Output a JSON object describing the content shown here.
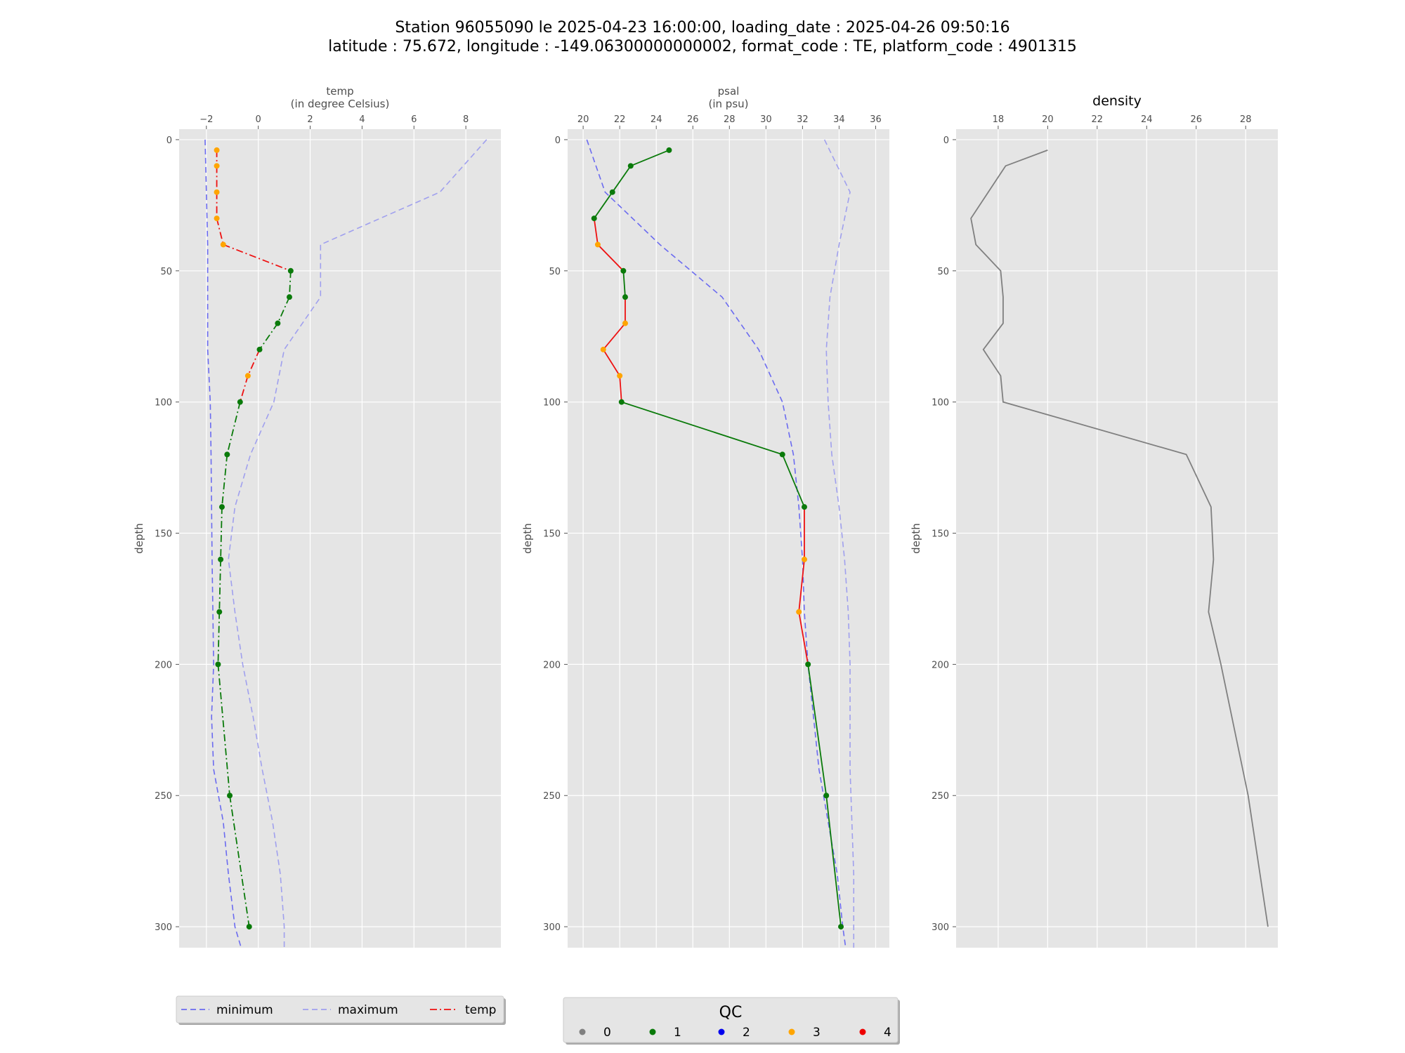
{
  "title_line1": "Station 96055090 le 2025-04-23 16:00:00, loading_date : 2025-04-26 09:50:16",
  "title_line2": "latitude : 75.672, longitude : -149.06300000000002, format_code : TE, platform_code : 4901315",
  "colors": {
    "panel_bg": "#e5e5e5",
    "grid": "#ffffff",
    "minimum": "#6b6bf0",
    "maximum": "#a0a0ee",
    "temp_line": "#ee1111",
    "psal_line": "#ee1111",
    "density_line": "#808080",
    "qc": {
      "0": "#808080",
      "1": "#0a7a0a",
      "2": "#0000ee",
      "3": "#ffa500",
      "4": "#ee0000"
    },
    "qc_line": {
      "1": "#0a7a0a",
      "3": "#ee1111",
      "4": "#ee1111"
    }
  },
  "chart_data": [
    {
      "type": "line",
      "id": "temp",
      "xlabel_line1": "temp",
      "xlabel_line2": "(in degree Celsius)",
      "ylabel": "depth",
      "title": "",
      "xlim": [
        -3.05,
        9.35
      ],
      "ylim": [
        308,
        -4
      ],
      "y_inverted": true,
      "xticks": [
        -2,
        0,
        2,
        4,
        6,
        8
      ],
      "xtick_labels": [
        "−2",
        "0",
        "2",
        "4",
        "6",
        "8"
      ],
      "yticks": [
        0,
        50,
        100,
        150,
        200,
        250,
        300
      ],
      "grid": true,
      "line_style": "dashdot",
      "minimum": {
        "depth": [
          0,
          20,
          40,
          60,
          80,
          100,
          120,
          140,
          160,
          180,
          200,
          220,
          240,
          260,
          280,
          300,
          310
        ],
        "value": [
          -2.05,
          -2.0,
          -1.95,
          -1.95,
          -1.95,
          -1.85,
          -1.82,
          -1.8,
          -1.78,
          -1.75,
          -1.72,
          -1.8,
          -1.72,
          -1.35,
          -1.15,
          -0.9,
          -0.6
        ]
      },
      "maximum": {
        "depth": [
          0,
          20,
          40,
          60,
          80,
          100,
          120,
          140,
          160,
          180,
          200,
          220,
          240,
          260,
          280,
          300,
          310
        ],
        "value": [
          8.8,
          7.0,
          2.4,
          2.4,
          1.0,
          0.6,
          -0.3,
          -0.9,
          -1.15,
          -0.9,
          -0.6,
          -0.2,
          0.15,
          0.55,
          0.85,
          1.0,
          1.0
        ]
      },
      "profile": {
        "depth": [
          4,
          10,
          20,
          30,
          40,
          50,
          60,
          70,
          80,
          90,
          100,
          120,
          140,
          160,
          180,
          200,
          250,
          300
        ],
        "value": [
          -1.6,
          -1.6,
          -1.6,
          -1.6,
          -1.35,
          1.25,
          1.2,
          0.75,
          0.05,
          -0.4,
          -0.7,
          -1.2,
          -1.4,
          -1.45,
          -1.5,
          -1.55,
          -1.1,
          -0.35
        ],
        "qc": [
          3,
          3,
          3,
          3,
          3,
          1,
          1,
          1,
          1,
          3,
          1,
          1,
          1,
          1,
          1,
          1,
          1,
          1
        ]
      }
    },
    {
      "type": "line",
      "id": "psal",
      "xlabel_line1": "psal",
      "xlabel_line2": "(in psu)",
      "ylabel": "depth",
      "title": "",
      "xlim": [
        19.15,
        36.75
      ],
      "ylim": [
        308,
        -4
      ],
      "y_inverted": true,
      "xticks": [
        20,
        22,
        24,
        26,
        28,
        30,
        32,
        34,
        36
      ],
      "xtick_labels": [
        "20",
        "22",
        "24",
        "26",
        "28",
        "30",
        "32",
        "34",
        "36"
      ],
      "yticks": [
        0,
        50,
        100,
        150,
        200,
        250,
        300
      ],
      "grid": true,
      "line_style": "solid",
      "minimum": {
        "depth": [
          0,
          20,
          40,
          60,
          80,
          100,
          120,
          140,
          160,
          180,
          200,
          220,
          240,
          260,
          280,
          300,
          310
        ],
        "value": [
          20.2,
          21.2,
          24.2,
          27.6,
          29.6,
          30.9,
          31.5,
          31.8,
          32.0,
          32.1,
          32.3,
          32.6,
          32.9,
          33.4,
          33.9,
          34.2,
          34.4
        ]
      },
      "maximum": {
        "depth": [
          0,
          20,
          40,
          60,
          80,
          100,
          120,
          140,
          160,
          180,
          200,
          220,
          240,
          260,
          280,
          300,
          310
        ],
        "value": [
          33.2,
          34.6,
          34.0,
          33.5,
          33.3,
          33.4,
          33.6,
          34.0,
          34.3,
          34.5,
          34.6,
          34.6,
          34.6,
          34.7,
          34.8,
          34.8,
          34.8
        ]
      },
      "profile": {
        "depth": [
          4,
          10,
          20,
          30,
          40,
          50,
          60,
          70,
          80,
          90,
          100,
          120,
          140,
          160,
          180,
          200,
          250,
          300
        ],
        "value": [
          24.7,
          22.6,
          21.6,
          20.6,
          20.8,
          22.2,
          22.3,
          22.3,
          21.1,
          22.0,
          22.1,
          30.9,
          32.1,
          32.1,
          31.8,
          32.3,
          33.3,
          34.1
        ],
        "qc": [
          1,
          1,
          1,
          1,
          3,
          1,
          1,
          3,
          3,
          3,
          1,
          1,
          1,
          3,
          3,
          1,
          1,
          1
        ]
      }
    },
    {
      "type": "line",
      "id": "density",
      "title": "density",
      "xlabel_line1": "",
      "xlabel_line2": "",
      "ylabel": "depth",
      "xlim": [
        16.3,
        29.3
      ],
      "ylim": [
        308,
        -4
      ],
      "y_inverted": true,
      "xticks": [
        18,
        20,
        22,
        24,
        26,
        28
      ],
      "xtick_labels": [
        "18",
        "20",
        "22",
        "24",
        "26",
        "28"
      ],
      "yticks": [
        0,
        50,
        100,
        150,
        200,
        250,
        300
      ],
      "grid": true,
      "line_style": "solid",
      "profile": {
        "depth": [
          4,
          10,
          30,
          40,
          50,
          60,
          70,
          80,
          90,
          100,
          120,
          140,
          160,
          180,
          200,
          250,
          300
        ],
        "value": [
          20.0,
          18.3,
          16.9,
          17.1,
          18.1,
          18.2,
          18.2,
          17.4,
          18.1,
          18.2,
          25.6,
          26.6,
          26.7,
          26.5,
          27.0,
          28.1,
          28.9
        ]
      }
    }
  ],
  "legend_left": {
    "items": [
      {
        "label": "minimum",
        "style": "minimum"
      },
      {
        "label": "maximum",
        "style": "maximum"
      },
      {
        "label": "temp",
        "style": "temp"
      }
    ]
  },
  "legend_qc": {
    "title": "QC",
    "items": [
      {
        "label": "0",
        "qc": "0"
      },
      {
        "label": "1",
        "qc": "1"
      },
      {
        "label": "2",
        "qc": "2"
      },
      {
        "label": "3",
        "qc": "3"
      },
      {
        "label": "4",
        "qc": "4"
      }
    ]
  }
}
